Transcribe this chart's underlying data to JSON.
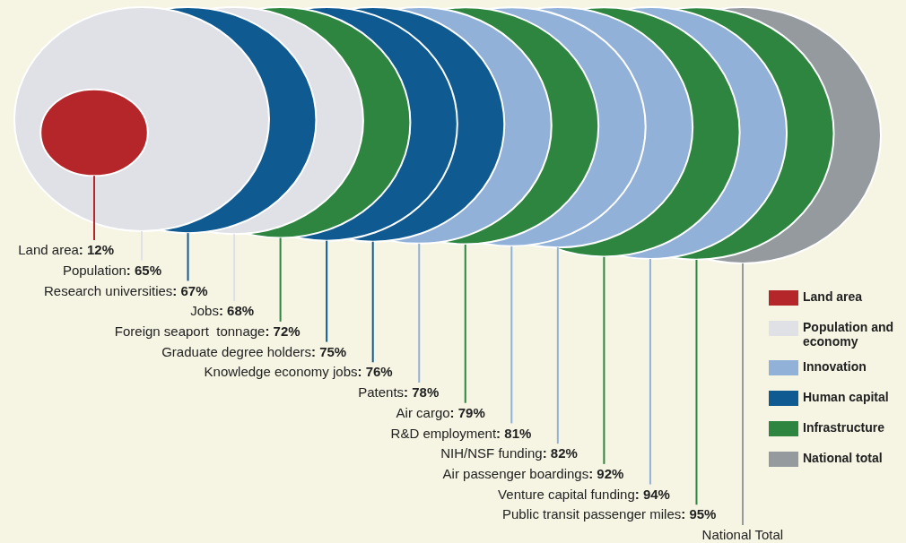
{
  "chart_data": {
    "type": "other",
    "categories": [
      "Land area",
      "Population",
      "Research universities",
      "Jobs",
      "Foreign seaport  tonnage",
      "Graduate degree holders",
      "Knowledge economy jobs",
      "Patents",
      "Air cargo",
      "R&D employment",
      "NIH/NSF funding",
      "Air passenger boardings",
      "Venture capital funding",
      "Public transit passenger miles",
      "National Total"
    ],
    "series": [
      {
        "name": "Land area",
        "color": "#b5262b",
        "values": [
          12,
          null,
          null,
          null,
          null,
          null,
          null,
          null,
          null,
          null,
          null,
          null,
          null,
          null,
          null
        ],
        "value_labels": [
          ": 12%",
          null,
          null,
          null,
          null,
          null,
          null,
          null,
          null,
          null,
          null,
          null,
          null,
          null,
          null
        ]
      },
      {
        "name": "Population and economy",
        "color": "#dfe1e6",
        "values": [
          null,
          65,
          null,
          68,
          null,
          null,
          null,
          null,
          null,
          null,
          null,
          null,
          null,
          null,
          null
        ],
        "value_labels": [
          null,
          ": 65%",
          null,
          ": 68%",
          null,
          null,
          null,
          null,
          null,
          null,
          null,
          null,
          null,
          null,
          null
        ]
      },
      {
        "name": "Innovation",
        "color": "#92b1d8",
        "values": [
          null,
          null,
          null,
          null,
          null,
          null,
          null,
          78,
          null,
          81,
          82,
          null,
          94,
          null,
          null
        ],
        "value_labels": [
          null,
          null,
          null,
          null,
          null,
          null,
          null,
          ": 78%",
          null,
          ": 81%",
          ": 82%",
          null,
          ": 94%",
          null,
          null
        ]
      },
      {
        "name": "Human capital",
        "color": "#0f5a91",
        "values": [
          null,
          null,
          67,
          null,
          null,
          75,
          76,
          null,
          null,
          null,
          null,
          null,
          null,
          null,
          null
        ],
        "value_labels": [
          null,
          null,
          ": 67%",
          null,
          null,
          ": 75%",
          ": 76%",
          null,
          null,
          null,
          null,
          null,
          null,
          null,
          null
        ]
      },
      {
        "name": "Infrastructure",
        "color": "#2e8540",
        "values": [
          null,
          null,
          null,
          null,
          72,
          null,
          null,
          null,
          79,
          null,
          null,
          92,
          null,
          95,
          null
        ],
        "value_labels": [
          null,
          null,
          null,
          null,
          ": 72%",
          null,
          null,
          null,
          ": 79%",
          null,
          null,
          ": 92%",
          null,
          ": 95%",
          null
        ]
      },
      {
        "name": "National total",
        "color": "#959a9f",
        "values": [
          null,
          null,
          null,
          null,
          null,
          null,
          null,
          null,
          null,
          null,
          null,
          null,
          null,
          null,
          null
        ]
      }
    ],
    "legend": "bottom right"
  }
}
